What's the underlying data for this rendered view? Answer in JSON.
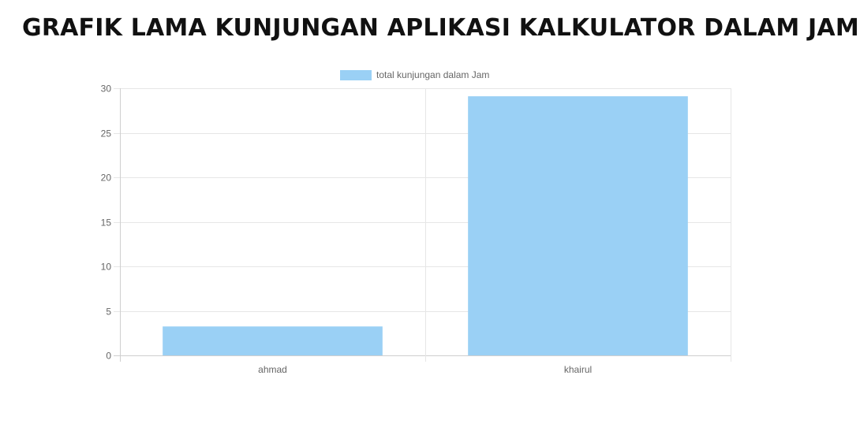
{
  "page": {
    "title": "GRAFIK LAMA KUNJUNGAN APLIKASI KALKULATOR DALAM JAM"
  },
  "chart_data": {
    "type": "bar",
    "categories": [
      "ahmad",
      "khairul"
    ],
    "series": [
      {
        "name": "total kunjungan dalam Jam",
        "values": [
          3.25,
          29.1
        ],
        "color": "#9ad0f5"
      }
    ],
    "ylim": [
      0,
      30
    ],
    "yticks": [
      0,
      5,
      10,
      15,
      20,
      25,
      30
    ],
    "grid": true,
    "legend_position": "top"
  }
}
